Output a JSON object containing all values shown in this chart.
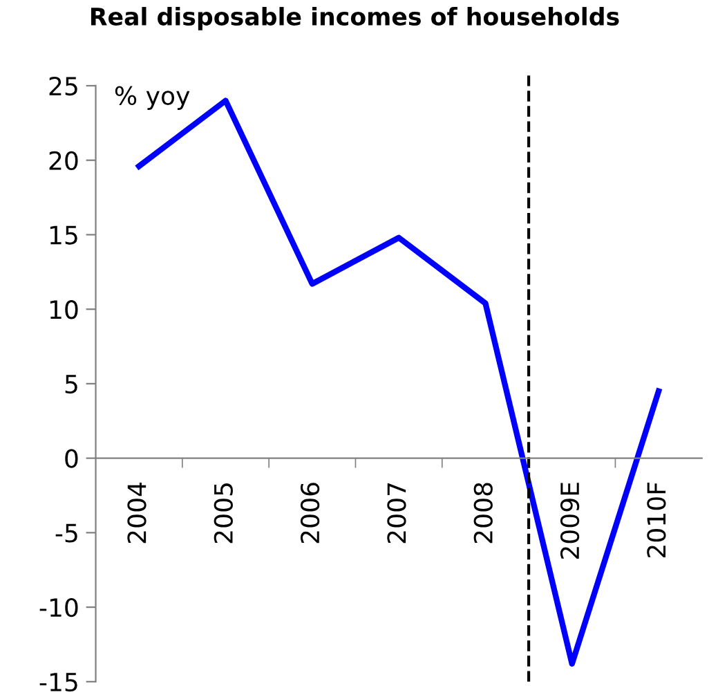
{
  "chart_data": {
    "type": "line",
    "title": "Real disposable incomes of households",
    "ylabel": "% yoy",
    "categories": [
      "2004",
      "2005",
      "2006",
      "2007",
      "2008",
      "2009E",
      "2010F"
    ],
    "series": [
      {
        "color": "#0000ff",
        "values": [
          19.6,
          24.0,
          11.7,
          14.8,
          10.4,
          -13.8,
          4.5
        ]
      }
    ],
    "ylim": [
      -15,
      25
    ],
    "yticks": [
      -15,
      -10,
      -5,
      0,
      5,
      10,
      15,
      20,
      25
    ],
    "grid": false,
    "legend": false,
    "marker": "none",
    "line_style": "solid"
  }
}
